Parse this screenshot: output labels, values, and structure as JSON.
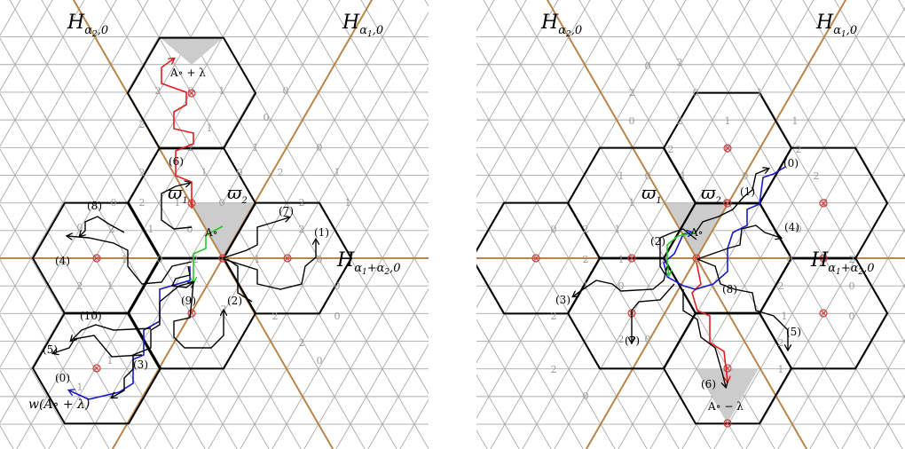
{
  "colors": {
    "grid": "#aaaaaa",
    "wall": "#b8864b",
    "hexagon": "#000000",
    "alcove": "#cccccc",
    "vertex": "#d04040",
    "path_black": "#000000",
    "path_red": "#e02020",
    "path_blue": "#1a1acc",
    "path_green": "#22cc22"
  },
  "left": {
    "hyperplanes": {
      "h1": {
        "base": "H",
        "sub": "α",
        "sub1": "2",
        "sub2": ",0"
      },
      "h2": {
        "base": "H",
        "sub": "α",
        "sub1": "1",
        "sub2": ",0"
      },
      "h3": {
        "base": "H",
        "sub": "α",
        "sub1": "1",
        "sub2": "+α",
        "sub3": "2",
        "sub4": ",0"
      }
    },
    "alcove_top": "A∘ + λ",
    "alcove_mid": "A∘",
    "weights": [
      "ϖ",
      "1",
      "ϖ",
      "2"
    ],
    "w_label": "w(A∘ + λ)",
    "steps": [
      "(0)",
      "(1)",
      "(2)",
      "(3)",
      "(4)",
      "(5)",
      "(6)",
      "(7)",
      "(8)",
      "(9)",
      "(10)"
    ],
    "lattice_digits": [
      "2",
      "0",
      "1",
      "0",
      "2",
      "1",
      "0",
      "2",
      "1",
      "0",
      "2",
      "1",
      "0",
      "2",
      "1",
      "0",
      "2",
      "1",
      "0",
      "2",
      "1",
      "0",
      "2",
      "1",
      "0",
      "2",
      "1",
      "0",
      "2",
      "1",
      "0",
      "2",
      "1",
      "0",
      "2"
    ]
  },
  "right": {
    "hyperplanes": {
      "h1": {
        "base": "H",
        "sub": "α",
        "sub1": "2",
        "sub2": ",0"
      },
      "h2": {
        "base": "H",
        "sub": "α",
        "sub1": "1",
        "sub2": ",0"
      },
      "h3": {
        "base": "H",
        "sub": "α",
        "sub1": "1",
        "sub2": "+α",
        "sub3": "2",
        "sub4": ",0"
      }
    },
    "alcove_bottom": "A∘ − λ",
    "alcove_mid": "A∘",
    "weights": [
      "ϖ",
      "1",
      "ϖ",
      "2"
    ],
    "steps": [
      "(0)",
      "(1)",
      "(2)",
      "(3)",
      "(4)",
      "(5)",
      "(6)",
      "(7)",
      "(8)"
    ],
    "lattice_digits": [
      "0",
      "2",
      "2",
      "0",
      "1",
      "0",
      "2",
      "1",
      "1",
      "2",
      "0",
      "2",
      "1",
      "0",
      "1",
      "0",
      "2",
      "1",
      "0",
      "2",
      "0",
      "2",
      "1",
      "0",
      "2",
      "1",
      "0",
      "2",
      "1",
      "0",
      "2",
      "0",
      "2",
      "1",
      "0",
      "2"
    ]
  }
}
